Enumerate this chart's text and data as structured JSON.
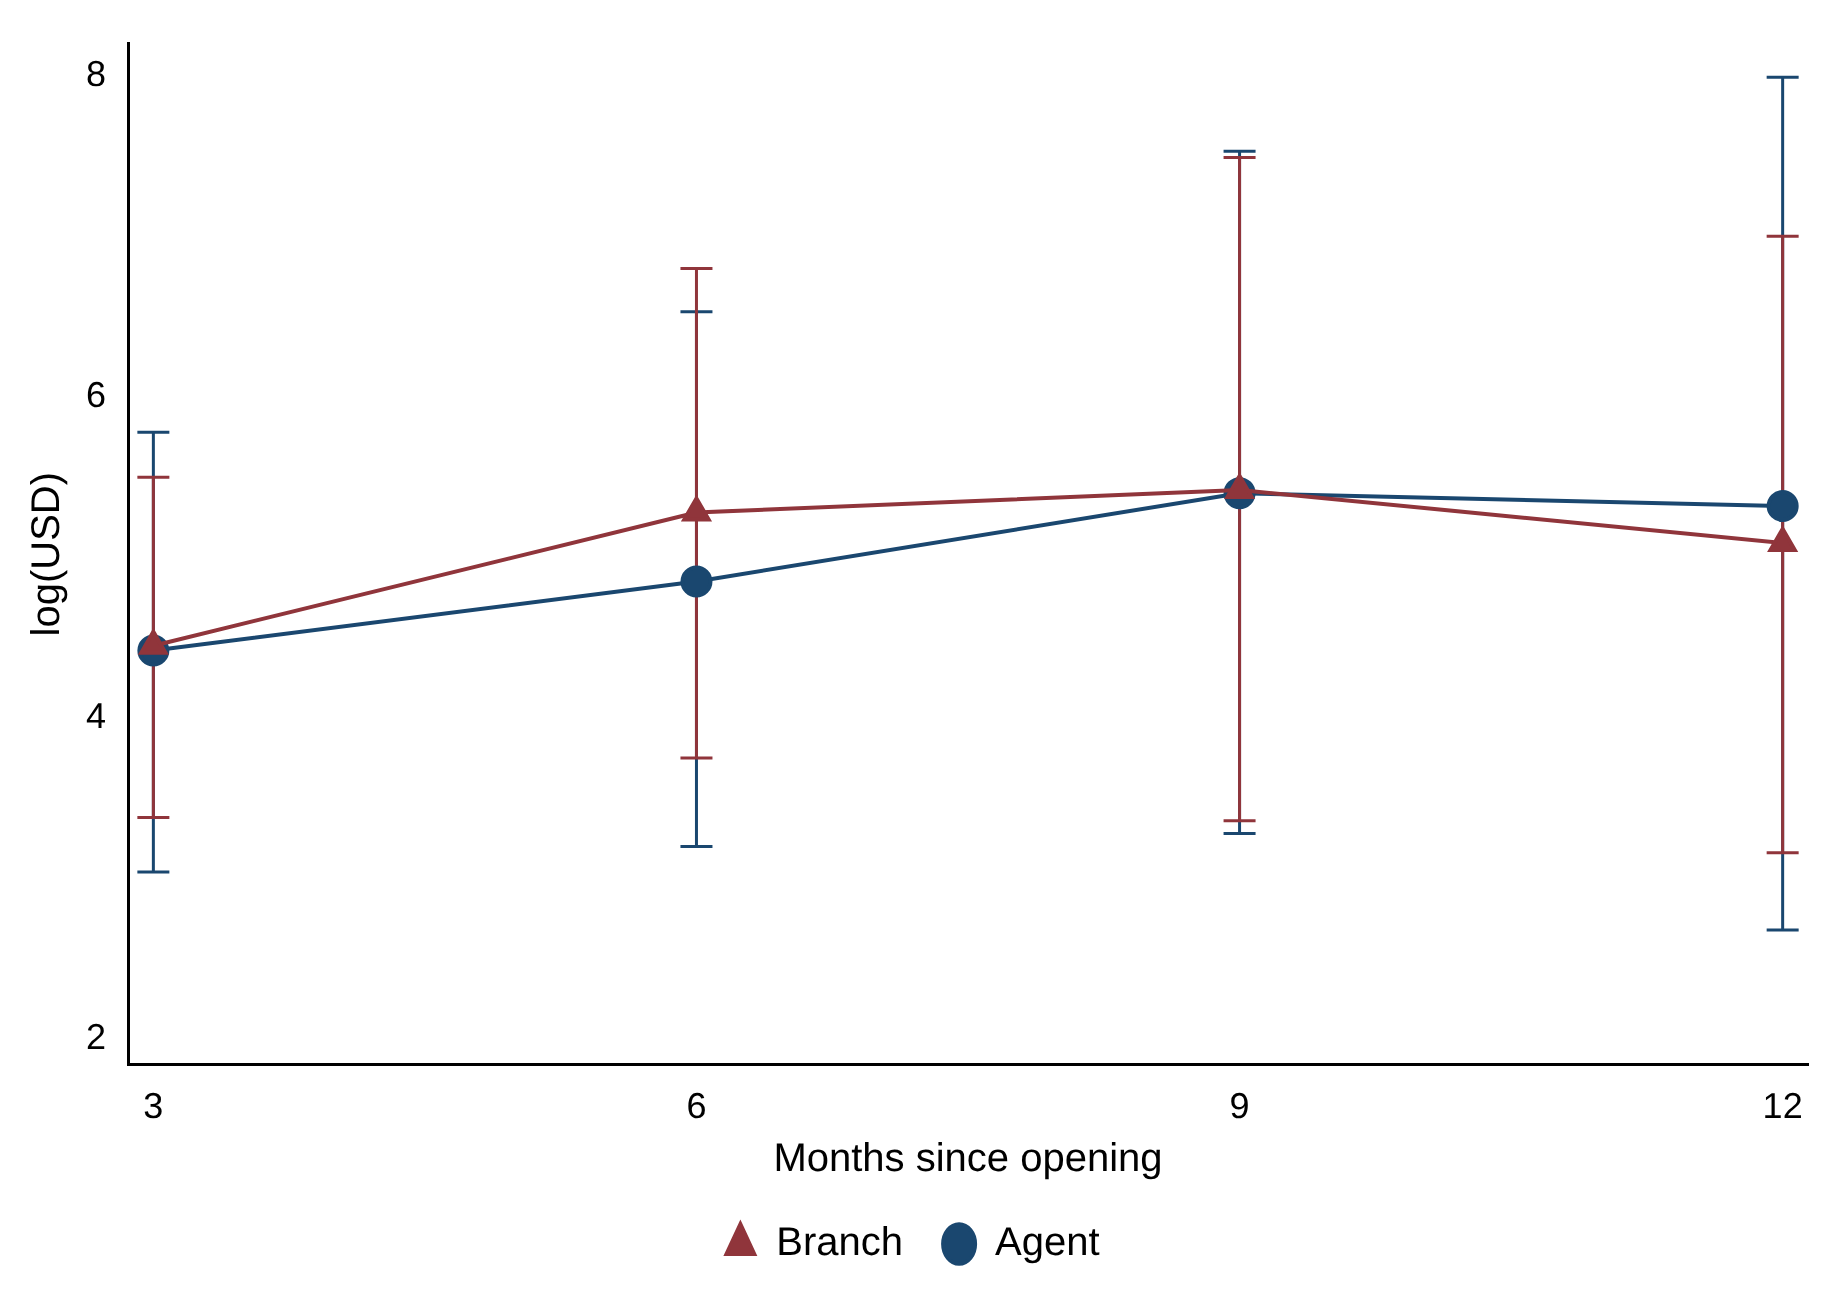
{
  "chart_data": {
    "type": "line",
    "xlabel": "Months since opening",
    "ylabel": "log(USD)",
    "x": [
      3,
      6,
      9,
      12
    ],
    "xlim": [
      2.86,
      12.14
    ],
    "xticks": [
      3,
      6,
      9,
      12
    ],
    "ylim": [
      1.84,
      8.2
    ],
    "yticks": [
      2,
      4,
      6,
      8
    ],
    "grid": false,
    "legend": "bottom",
    "series": [
      {
        "name": "Agent",
        "color": "#1a476f",
        "marker": "circle",
        "values": [
          4.42,
          4.85,
          5.4,
          5.32
        ],
        "errors": [
          [
            3.04,
            5.78
          ],
          [
            3.2,
            6.53
          ],
          [
            3.28,
            7.53
          ],
          [
            2.68,
            7.99
          ]
        ]
      },
      {
        "name": "Branch",
        "color": "#90353b",
        "marker": "triangle",
        "values": [
          4.45,
          5.28,
          5.42,
          5.09
        ],
        "errors": [
          [
            3.38,
            5.5
          ],
          [
            3.75,
            6.8
          ],
          [
            3.36,
            7.49
          ],
          [
            3.16,
            7.0
          ]
        ]
      }
    ]
  }
}
